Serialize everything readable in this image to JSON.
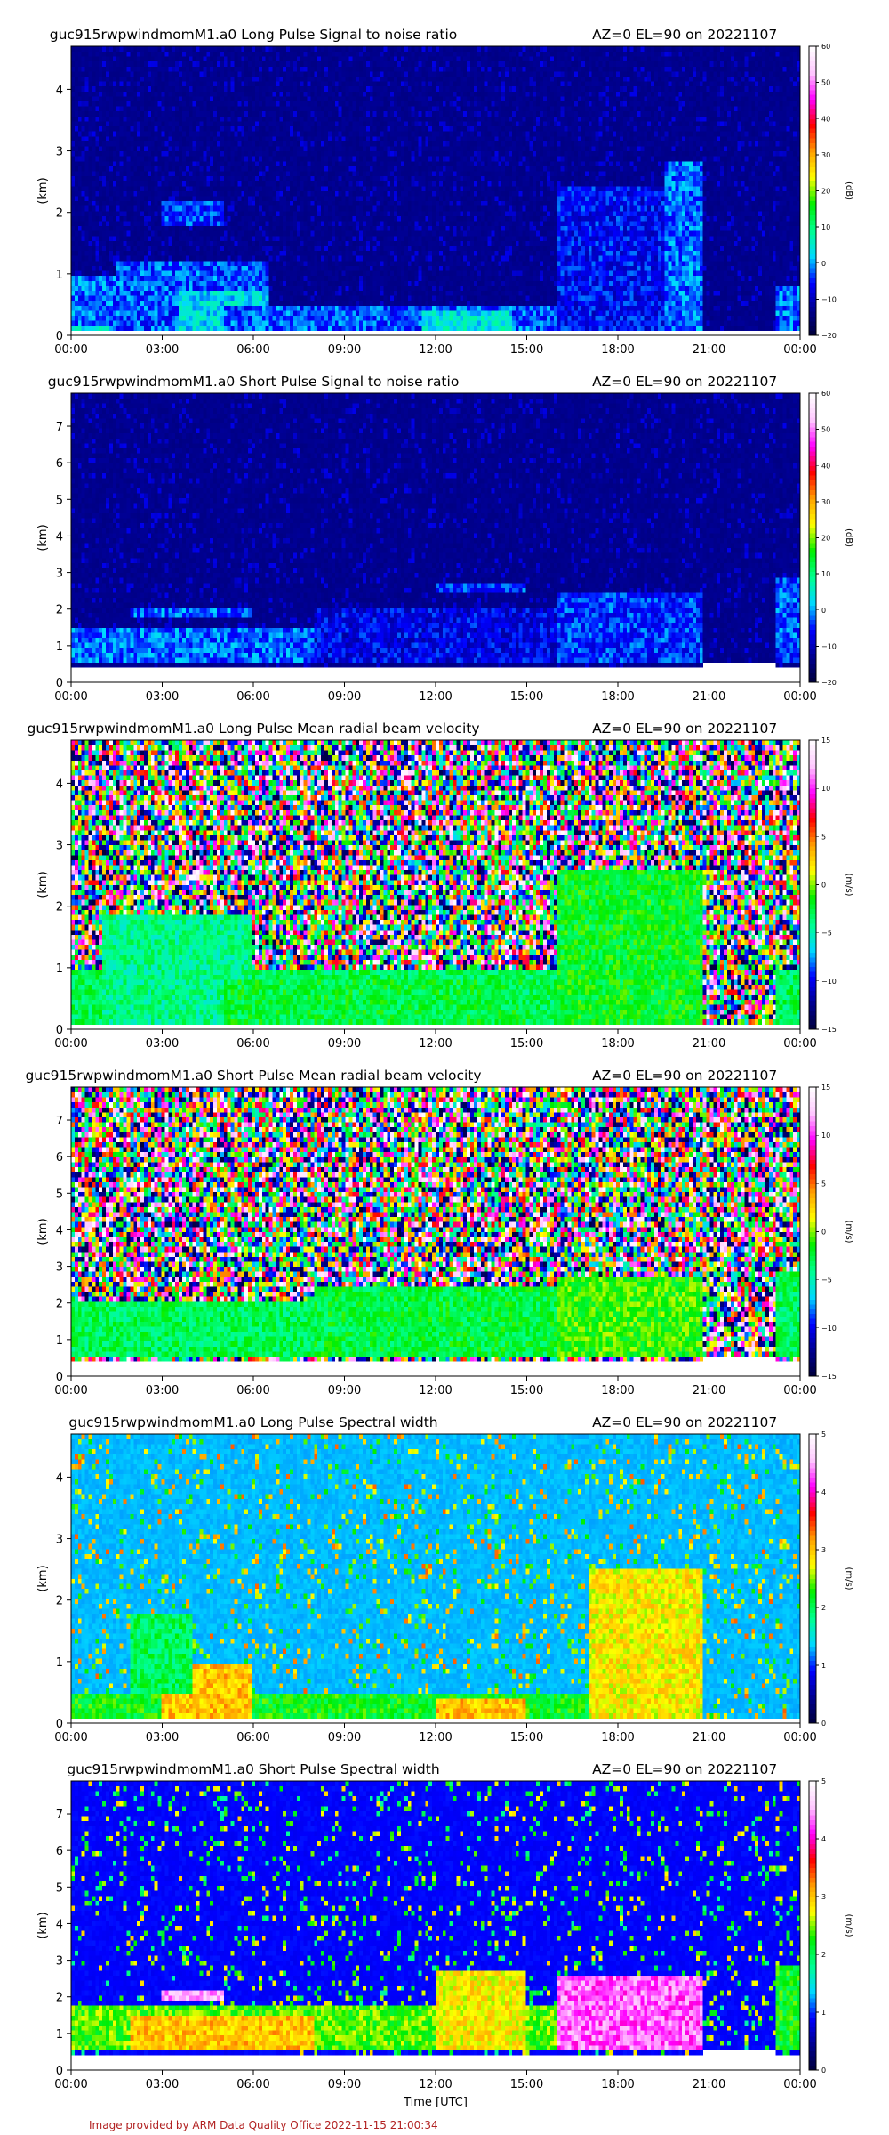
{
  "figure": {
    "xlabel": "Time [UTC]",
    "footer": "Image provided by ARM Data Quality Office 2022-11-15 21:00:34"
  },
  "chart_data": [
    {
      "type": "heatmap",
      "title": "guc915rwpwindmomM1.a0 Long Pulse Signal to noise ratio",
      "subtitle": "AZ=0 EL=90 on 20221107",
      "xlabel": "",
      "ylabel": "(km)",
      "x_ticks": [
        "00:00",
        "03:00",
        "06:00",
        "09:00",
        "12:00",
        "15:00",
        "18:00",
        "21:00",
        "00:00"
      ],
      "xlim_hours": [
        0,
        24
      ],
      "y_ticks": [
        0,
        1,
        2,
        3,
        4
      ],
      "ylim": [
        0,
        4.7
      ],
      "colorbar": {
        "label": "(dB)",
        "ticks": [
          -20,
          -10,
          0,
          10,
          20,
          30,
          40,
          50,
          60
        ],
        "range": [
          -20,
          60
        ]
      },
      "colormap": [
        "#00003a",
        "#000090",
        "#0000ff",
        "#00d8ff",
        "#00ff90",
        "#00ee00",
        "#ffff00",
        "#ffa000",
        "#ff0000",
        "#ff00ff",
        "#ffc8ff",
        "#ffffff"
      ],
      "background_value": -13,
      "noise_value": -9,
      "features": [
        {
          "t0": 0,
          "t1": 4.5,
          "h0": 0.05,
          "h1": 0.3,
          "v": 3
        },
        {
          "t0": 0,
          "t1": 2,
          "h0": 0.2,
          "h1": 1.0,
          "v": -2
        },
        {
          "t0": 1.5,
          "t1": 6.5,
          "h0": 0.1,
          "h1": 1.2,
          "v": -3
        },
        {
          "t0": 3.5,
          "t1": 6.5,
          "h0": 0.1,
          "h1": 0.7,
          "v": 3
        },
        {
          "t0": 3,
          "t1": 5,
          "h0": 1.8,
          "h1": 2.2,
          "v": -4
        },
        {
          "t0": 5,
          "t1": 16,
          "h0": 0.1,
          "h1": 0.45,
          "v": -3
        },
        {
          "t0": 11.5,
          "t1": 14.5,
          "h0": 0.05,
          "h1": 0.4,
          "v": 4
        },
        {
          "t0": 16,
          "t1": 20.8,
          "h0": 0.1,
          "h1": 2.4,
          "v": -6
        },
        {
          "t0": 19.5,
          "t1": 20.8,
          "h0": 0.1,
          "h1": 2.8,
          "v": -2
        },
        {
          "t0": 23.2,
          "t1": 24,
          "h0": 0.05,
          "h1": 0.8,
          "v": -2
        }
      ],
      "blank": [
        {
          "t0": 0,
          "t1": 24,
          "h0": 0,
          "h1": 0.05
        },
        {
          "t0": 20.8,
          "t1": 23.2,
          "h0": 0,
          "h1": 0.1
        }
      ]
    },
    {
      "type": "heatmap",
      "title": "guc915rwpwindmomM1.a0 Short Pulse Signal to noise ratio",
      "subtitle": "AZ=0 EL=90 on 20221107",
      "xlabel": "",
      "ylabel": "(km)",
      "x_ticks": [
        "00:00",
        "03:00",
        "06:00",
        "09:00",
        "12:00",
        "15:00",
        "18:00",
        "21:00",
        "00:00"
      ],
      "xlim_hours": [
        0,
        24
      ],
      "y_ticks": [
        0,
        1,
        2,
        3,
        4,
        5,
        6,
        7
      ],
      "ylim": [
        0,
        7.9
      ],
      "colorbar": {
        "label": "(dB)",
        "ticks": [
          -20,
          -10,
          0,
          10,
          20,
          30,
          40,
          50,
          60
        ],
        "range": [
          -20,
          60
        ]
      },
      "colormap": [
        "#00003a",
        "#000090",
        "#0000ff",
        "#00d8ff",
        "#00ff90",
        "#00ee00",
        "#ffff00",
        "#ffa000",
        "#ff0000",
        "#ff00ff",
        "#ffc8ff",
        "#ffffff"
      ],
      "background_value": -13,
      "noise_value": -9,
      "features": [
        {
          "t0": 0,
          "t1": 20.8,
          "h0": 0.5,
          "h1": 1.2,
          "v": -3
        },
        {
          "t0": 0,
          "t1": 8,
          "h0": 0.6,
          "h1": 1.5,
          "v": -2
        },
        {
          "t0": 2,
          "t1": 6,
          "h0": 1.8,
          "h1": 2.1,
          "v": -2
        },
        {
          "t0": 8,
          "t1": 16,
          "h0": 0.5,
          "h1": 2.0,
          "v": -7
        },
        {
          "t0": 12,
          "t1": 15,
          "h0": 2.4,
          "h1": 2.7,
          "v": -4
        },
        {
          "t0": 16,
          "t1": 20.8,
          "h0": 0.5,
          "h1": 2.5,
          "v": -4
        },
        {
          "t0": 23.2,
          "t1": 24,
          "h0": 0.5,
          "h1": 2.8,
          "v": -3
        }
      ],
      "blank": [
        {
          "t0": 0,
          "t1": 24,
          "h0": 0,
          "h1": 0.45
        },
        {
          "t0": 20.8,
          "t1": 23.2,
          "h0": 0,
          "h1": 0.5
        }
      ]
    },
    {
      "type": "heatmap",
      "title": "guc915rwpwindmomM1.a0 Long Pulse Mean radial beam velocity",
      "subtitle": "AZ=0 EL=90 on 20221107",
      "xlabel": "",
      "ylabel": "(km)",
      "x_ticks": [
        "00:00",
        "03:00",
        "06:00",
        "09:00",
        "12:00",
        "15:00",
        "18:00",
        "21:00",
        "00:00"
      ],
      "xlim_hours": [
        0,
        24
      ],
      "y_ticks": [
        0,
        1,
        2,
        3,
        4
      ],
      "ylim": [
        0,
        4.7
      ],
      "colorbar": {
        "label": "(m/s)",
        "ticks": [
          -15,
          -10,
          -5,
          0,
          5,
          10,
          15
        ],
        "range": [
          -15,
          15
        ]
      },
      "colormap": [
        "#00003a",
        "#000090",
        "#0000ff",
        "#00d8ff",
        "#00ff90",
        "#00ee00",
        "#ffff00",
        "#ffa000",
        "#ff0000",
        "#ff00ff",
        "#ffc8ff",
        "#ffffff"
      ],
      "background_value": "noise",
      "features": [
        {
          "t0": 0,
          "t1": 20.8,
          "h0": 0.05,
          "h1": 1.0,
          "v": -3
        },
        {
          "t0": 1,
          "t1": 6,
          "h0": 0.05,
          "h1": 1.9,
          "v": -4
        },
        {
          "t0": 5,
          "t1": 15,
          "h0": 0.05,
          "h1": 0.8,
          "v": -2.5
        },
        {
          "t0": 16,
          "t1": 20.8,
          "h0": 0.05,
          "h1": 2.6,
          "v": -2
        },
        {
          "t0": 23.2,
          "t1": 24,
          "h0": 0.05,
          "h1": 1.0,
          "v": -3
        }
      ],
      "blank": [
        {
          "t0": 0,
          "t1": 24,
          "h0": 0,
          "h1": 0.05
        },
        {
          "t0": 20.8,
          "t1": 23.2,
          "h0": 0,
          "h1": 0.1
        }
      ]
    },
    {
      "type": "heatmap",
      "title": "guc915rwpwindmomM1.a0 Short Pulse Mean radial beam velocity",
      "subtitle": "AZ=0 EL=90 on 20221107",
      "xlabel": "",
      "ylabel": "(km)",
      "x_ticks": [
        "00:00",
        "03:00",
        "06:00",
        "09:00",
        "12:00",
        "15:00",
        "18:00",
        "21:00",
        "00:00"
      ],
      "xlim_hours": [
        0,
        24
      ],
      "y_ticks": [
        0,
        1,
        2,
        3,
        4,
        5,
        6,
        7
      ],
      "ylim": [
        0,
        7.9
      ],
      "colorbar": {
        "label": "(m/s)",
        "ticks": [
          -15,
          -10,
          -5,
          0,
          5,
          10,
          15
        ],
        "range": [
          -15,
          15
        ]
      },
      "colormap": [
        "#00003a",
        "#000090",
        "#0000ff",
        "#00d8ff",
        "#00ff90",
        "#00ee00",
        "#ffff00",
        "#ffa000",
        "#ff0000",
        "#ff00ff",
        "#ffc8ff",
        "#ffffff"
      ],
      "background_value": "noise",
      "features": [
        {
          "t0": 0,
          "t1": 20.8,
          "h0": 0.5,
          "h1": 2.0,
          "v": -3
        },
        {
          "t0": 8,
          "t1": 16,
          "h0": 0.5,
          "h1": 2.5,
          "v": -2.5
        },
        {
          "t0": 16,
          "t1": 20.8,
          "h0": 0.5,
          "h1": 2.7,
          "v": -1
        },
        {
          "t0": 23.2,
          "t1": 24,
          "h0": 0.5,
          "h1": 2.8,
          "v": -3
        }
      ],
      "blank": [
        {
          "t0": 0,
          "t1": 24,
          "h0": 0,
          "h1": 0.45
        },
        {
          "t0": 20.8,
          "t1": 23.2,
          "h0": 0,
          "h1": 0.5
        }
      ]
    },
    {
      "type": "heatmap",
      "title": "guc915rwpwindmomM1.a0 Long Pulse Spectral width",
      "subtitle": "AZ=0 EL=90 on 20221107",
      "xlabel": "",
      "ylabel": "(km)",
      "x_ticks": [
        "00:00",
        "03:00",
        "06:00",
        "09:00",
        "12:00",
        "15:00",
        "18:00",
        "21:00",
        "00:00"
      ],
      "xlim_hours": [
        0,
        24
      ],
      "y_ticks": [
        0,
        1,
        2,
        3,
        4
      ],
      "ylim": [
        0,
        4.7
      ],
      "colorbar": {
        "label": "(m/s)",
        "ticks": [
          0,
          1,
          2,
          3,
          4,
          5
        ],
        "range": [
          0,
          5
        ]
      },
      "colormap": [
        "#00003a",
        "#000090",
        "#0000ff",
        "#00d8ff",
        "#00ff90",
        "#00ee00",
        "#ffff00",
        "#ffa000",
        "#ff0000",
        "#ff00ff",
        "#ffc8ff",
        "#ffffff"
      ],
      "background_value": 1.3,
      "noise_value": 2.6,
      "features": [
        {
          "t0": 0,
          "t1": 20.8,
          "h0": 0.05,
          "h1": 0.45,
          "v": 2.2
        },
        {
          "t0": 3,
          "t1": 6,
          "h0": 0.1,
          "h1": 1.0,
          "v": 3.0
        },
        {
          "t0": 2,
          "t1": 4,
          "h0": 0.5,
          "h1": 1.8,
          "v": 2.0
        },
        {
          "t0": 12,
          "t1": 15,
          "h0": 0.05,
          "h1": 0.4,
          "v": 3.0
        },
        {
          "t0": 17,
          "t1": 20.8,
          "h0": 0.1,
          "h1": 2.5,
          "v": 2.8
        }
      ],
      "blank": [
        {
          "t0": 0,
          "t1": 24,
          "h0": 0,
          "h1": 0.05
        },
        {
          "t0": 20.8,
          "t1": 23.2,
          "h0": 0,
          "h1": 0.1
        }
      ]
    },
    {
      "type": "heatmap",
      "title": "guc915rwpwindmomM1.a0 Short Pulse Spectral width",
      "subtitle": "AZ=0 EL=90 on 20221107",
      "xlabel": "Time [UTC]",
      "ylabel": "(km)",
      "x_ticks": [
        "00:00",
        "03:00",
        "06:00",
        "09:00",
        "12:00",
        "15:00",
        "18:00",
        "21:00",
        "00:00"
      ],
      "xlim_hours": [
        0,
        24
      ],
      "y_ticks": [
        0,
        1,
        2,
        3,
        4,
        5,
        6,
        7
      ],
      "ylim": [
        0,
        7.9
      ],
      "colorbar": {
        "label": "(m/s)",
        "ticks": [
          0,
          1,
          2,
          3,
          4,
          5
        ],
        "range": [
          0,
          5
        ]
      },
      "colormap": [
        "#00003a",
        "#000090",
        "#0000ff",
        "#00d8ff",
        "#00ff90",
        "#00ee00",
        "#ffff00",
        "#ffa000",
        "#ff0000",
        "#ff00ff",
        "#ffc8ff",
        "#ffffff"
      ],
      "background_value": 0.9,
      "noise_value": 2.2,
      "features": [
        {
          "t0": 0,
          "t1": 20.8,
          "h0": 0.5,
          "h1": 1.8,
          "v": 2.4
        },
        {
          "t0": 2,
          "t1": 8,
          "h0": 0.5,
          "h1": 1.5,
          "v": 3.0
        },
        {
          "t0": 3,
          "t1": 5,
          "h0": 1.9,
          "h1": 2.2,
          "v": 4.5
        },
        {
          "t0": 12,
          "t1": 15,
          "h0": 0.5,
          "h1": 2.7,
          "v": 2.8
        },
        {
          "t0": 16,
          "t1": 20.8,
          "h0": 0.5,
          "h1": 2.6,
          "v": 4.3
        },
        {
          "t0": 23.2,
          "t1": 24,
          "h0": 0.5,
          "h1": 2.8,
          "v": 2.2
        }
      ],
      "blank": [
        {
          "t0": 0,
          "t1": 24,
          "h0": 0,
          "h1": 0.45
        },
        {
          "t0": 20.8,
          "t1": 23.2,
          "h0": 0,
          "h1": 0.5
        }
      ]
    }
  ]
}
